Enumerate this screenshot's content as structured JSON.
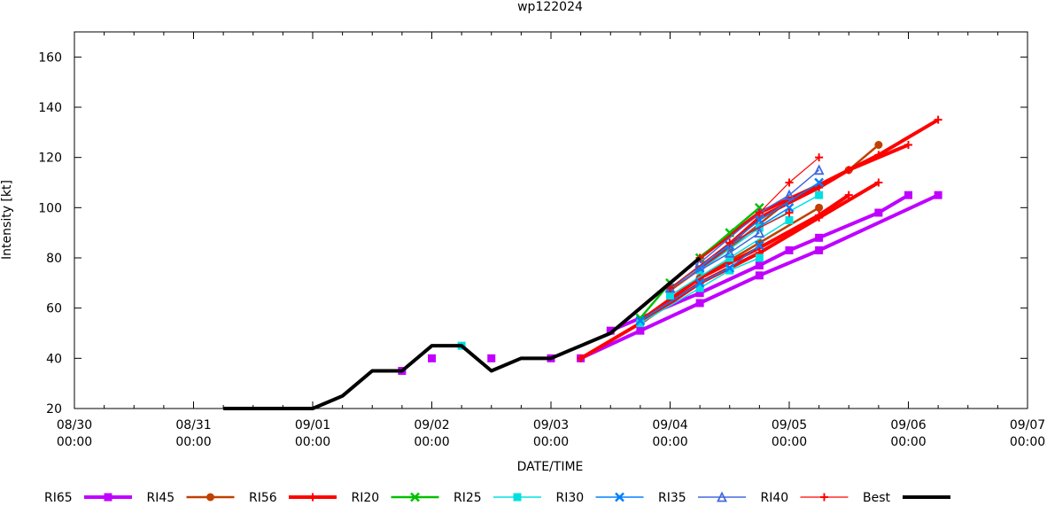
{
  "chart_data": {
    "type": "line",
    "title": "wp122024",
    "xlabel": "DATE/TIME",
    "ylabel": "Intensity [kt]",
    "ylim": [
      20,
      170
    ],
    "xlim": [
      "08/30 00",
      "09/07 00"
    ],
    "yticks": [
      20,
      40,
      60,
      80,
      100,
      120,
      140,
      160
    ],
    "xticks": [
      {
        "date": "08/30",
        "time": "00:00"
      },
      {
        "date": "08/31",
        "time": "00:00"
      },
      {
        "date": "09/01",
        "time": "00:00"
      },
      {
        "date": "09/02",
        "time": "00:00"
      },
      {
        "date": "09/03",
        "time": "00:00"
      },
      {
        "date": "09/04",
        "time": "00:00"
      },
      {
        "date": "09/05",
        "time": "00:00"
      },
      {
        "date": "09/06",
        "time": "00:00"
      },
      {
        "date": "09/07",
        "time": "00:00"
      }
    ],
    "legend_position": "bottom",
    "series": [
      {
        "name": "RI65",
        "color": "#c000ff",
        "width": 4,
        "marker": "square",
        "lines": [
          [
            [
              "09/01 18",
              35
            ]
          ],
          [
            [
              "09/02 00",
              40
            ]
          ],
          [
            [
              "09/02 12",
              40
            ]
          ],
          [
            [
              "09/03 00",
              40
            ]
          ],
          [
            [
              "09/03 06",
              40
            ],
            [
              "09/03 18",
              51
            ],
            [
              "09/04 06",
              62
            ],
            [
              "09/04 18",
              73
            ],
            [
              "09/05 06",
              83
            ],
            [
              "09/06 06",
              105
            ]
          ],
          [
            [
              "09/03 12",
              51
            ],
            [
              "09/04 06",
              66
            ],
            [
              "09/04 18",
              77
            ],
            [
              "09/05 00",
              83
            ],
            [
              "09/05 06",
              88
            ],
            [
              "09/05 18",
              98
            ],
            [
              "09/06 00",
              105
            ]
          ]
        ]
      },
      {
        "name": "RI45",
        "color": "#c04000",
        "width": 2.5,
        "marker": "circle",
        "lines": [
          [
            [
              "09/03 18",
              54
            ],
            [
              "09/04 06",
              72
            ],
            [
              "09/04 18",
              86
            ],
            [
              "09/05 06",
              100
            ]
          ],
          [
            [
              "09/04 00",
              67
            ],
            [
              "09/04 12",
              84
            ],
            [
              "09/05 00",
              103
            ],
            [
              "09/05 12",
              115
            ],
            [
              "09/05 18",
              125
            ]
          ]
        ]
      },
      {
        "name": "RI56",
        "color": "#ff0000",
        "width": 4,
        "marker": "plus",
        "lines": [
          [
            [
              "09/03 06",
              40
            ],
            [
              "09/03 18",
              54
            ],
            [
              "09/04 06",
              70
            ],
            [
              "09/04 18",
              82
            ],
            [
              "09/05 06",
              96
            ],
            [
              "09/05 18",
              110
            ]
          ],
          [
            [
              "09/03 18",
              55
            ],
            [
              "09/04 06",
              72
            ],
            [
              "09/04 18",
              84
            ],
            [
              "09/05 06",
              97
            ],
            [
              "09/05 12",
              105
            ]
          ],
          [
            [
              "09/04 06",
              75
            ],
            [
              "09/04 18",
              96
            ],
            [
              "09/05 06",
              108
            ],
            [
              "09/05 12",
              115
            ],
            [
              "09/06 00",
              125
            ]
          ],
          [
            [
              "09/04 06",
              80
            ],
            [
              "09/04 18",
              98
            ],
            [
              "09/05 06",
              109
            ],
            [
              "09/05 18",
              121
            ],
            [
              "09/06 06",
              135
            ]
          ]
        ]
      },
      {
        "name": "RI20",
        "color": "#00c000",
        "width": 2.5,
        "marker": "x",
        "lines": [
          [
            [
              "09/03 18",
              56
            ],
            [
              "09/04 00",
              70
            ],
            [
              "09/04 06",
              80
            ],
            [
              "09/04 12",
              90
            ],
            [
              "09/04 18",
              100
            ]
          ]
        ]
      },
      {
        "name": "RI25",
        "color": "#00e0e0",
        "width": 1.5,
        "marker": "square",
        "lines": [
          [
            [
              "09/02 06",
              45
            ]
          ],
          [
            [
              "09/03 18",
              54
            ],
            [
              "09/04 06",
              68
            ],
            [
              "09/04 12",
              75
            ],
            [
              "09/04 18",
              80
            ]
          ],
          [
            [
              "09/04 00",
              65
            ],
            [
              "09/04 12",
              80
            ],
            [
              "09/05 00",
              95
            ]
          ],
          [
            [
              "09/04 06",
              75
            ],
            [
              "09/04 18",
              92
            ],
            [
              "09/05 06",
              105
            ]
          ]
        ]
      },
      {
        "name": "RI30",
        "color": "#0080ff",
        "width": 1.5,
        "marker": "x",
        "lines": [
          [
            [
              "09/03 18",
              55
            ],
            [
              "09/04 06",
              70
            ],
            [
              "09/04 12",
              76
            ],
            [
              "09/04 18",
              85
            ]
          ],
          [
            [
              "09/04 00",
              68
            ],
            [
              "09/04 12",
              85
            ],
            [
              "09/05 00",
              100
            ]
          ],
          [
            [
              "09/04 06",
              76
            ],
            [
              "09/04 18",
              95
            ],
            [
              "09/05 06",
              110
            ]
          ]
        ]
      },
      {
        "name": "RI35",
        "color": "#4169e1",
        "width": 1.5,
        "marker": "triangle",
        "lines": [
          [
            [
              "09/04 00",
              68
            ],
            [
              "09/04 12",
              82
            ],
            [
              "09/04 18",
              90
            ]
          ],
          [
            [
              "09/04 06",
              78
            ],
            [
              "09/04 18",
              98
            ],
            [
              "09/05 00",
              105
            ],
            [
              "09/05 06",
              115
            ]
          ]
        ]
      },
      {
        "name": "RI40",
        "color": "#ff0000",
        "width": 1.2,
        "marker": "plus",
        "lines": [
          [
            [
              "09/04 00",
              68
            ],
            [
              "09/04 12",
              86
            ],
            [
              "09/05 00",
              98
            ]
          ],
          [
            [
              "09/04 06",
              80
            ],
            [
              "09/04 18",
              98
            ],
            [
              "09/05 00",
              110
            ],
            [
              "09/05 06",
              120
            ]
          ]
        ]
      },
      {
        "name": "Best",
        "color": "#000000",
        "width": 4,
        "marker": "none",
        "lines": [
          [
            [
              "08/31 06",
              20
            ],
            [
              "08/31 12",
              20
            ],
            [
              "08/31 18",
              20
            ],
            [
              "09/01 00",
              20
            ],
            [
              "09/01 06",
              25
            ],
            [
              "09/01 12",
              35
            ],
            [
              "09/01 18",
              35
            ],
            [
              "09/02 00",
              45
            ],
            [
              "09/02 06",
              45
            ],
            [
              "09/02 12",
              35
            ],
            [
              "09/02 18",
              40
            ],
            [
              "09/03 00",
              40
            ],
            [
              "09/03 06",
              45
            ],
            [
              "09/03 12",
              50
            ],
            [
              "09/03 18",
              60
            ],
            [
              "09/04 00",
              70
            ],
            [
              "09/04 06",
              80
            ]
          ]
        ]
      }
    ]
  }
}
